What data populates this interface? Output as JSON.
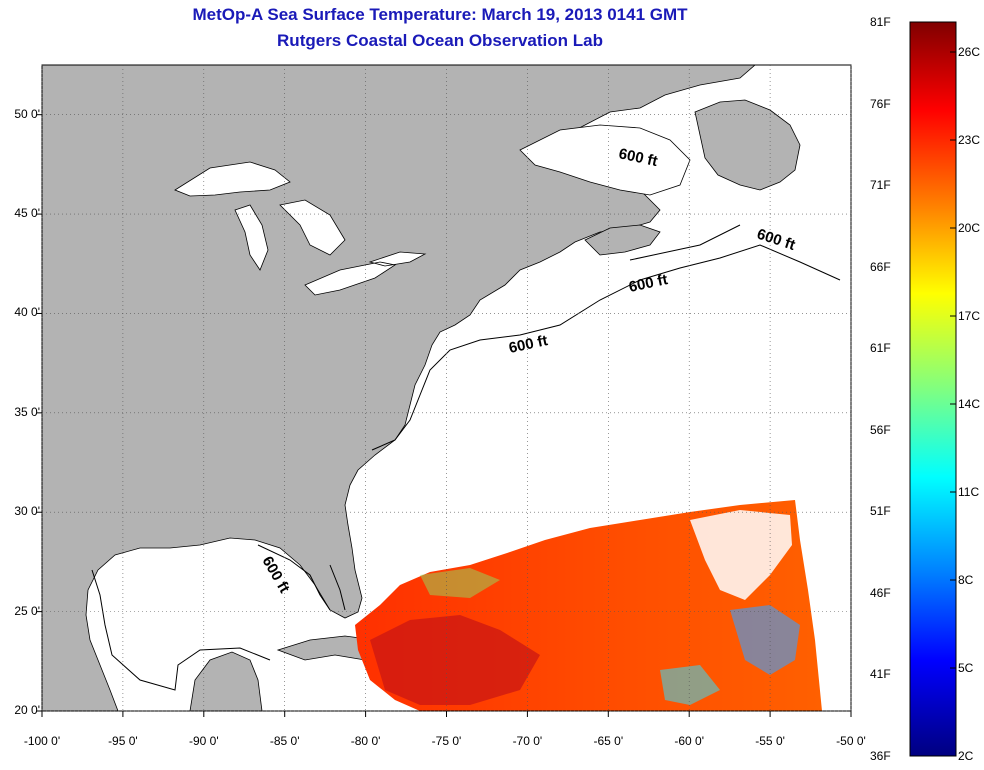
{
  "title": {
    "line1": "MetOp-A Sea Surface Temperature:  March 19, 2013 0141 GMT",
    "line2": "Rutgers Coastal Ocean Observation Lab"
  },
  "map": {
    "lon_range": [
      -100,
      -50
    ],
    "lat_range": [
      20,
      52.5
    ],
    "lon_ticks": [
      -100,
      -95,
      -90,
      -85,
      -80,
      -75,
      -70,
      -65,
      -60,
      -55,
      -50
    ],
    "lat_ticks": [
      20,
      25,
      30,
      35,
      40,
      45,
      50
    ],
    "lon_tick_labels": [
      "-100 0'",
      "-95 0'",
      "-90 0'",
      "-85 0'",
      "-80 0'",
      "-75 0'",
      "-70 0'",
      "-65 0'",
      "-60 0'",
      "-55 0'",
      "-50 0'"
    ],
    "lat_tick_labels": [
      "20 0'",
      "25 0'",
      "30 0'",
      "35 0'",
      "40 0'",
      "45 0'",
      "50 0'"
    ],
    "grid": "dotted",
    "land_color": "#b3b3b3",
    "ocean_color": "#ffffff",
    "contour_label": "600 ft",
    "contour_labels": [
      "600 ft",
      "600 ft",
      "600 ft",
      "600 ft",
      "600 ft"
    ]
  },
  "colorbar": {
    "f_labels": [
      "81F",
      "76F",
      "71F",
      "66F",
      "61F",
      "56F",
      "51F",
      "46F",
      "41F",
      "36F"
    ],
    "c_labels": [
      "26C",
      "23C",
      "20C",
      "17C",
      "14C",
      "11C",
      "8C",
      "5C",
      "2C"
    ],
    "colors": [
      "#800000",
      "#ff0000",
      "#ff8000",
      "#ffff00",
      "#80ff80",
      "#00ffff",
      "#0080ff",
      "#0000ff",
      "#000080"
    ]
  }
}
